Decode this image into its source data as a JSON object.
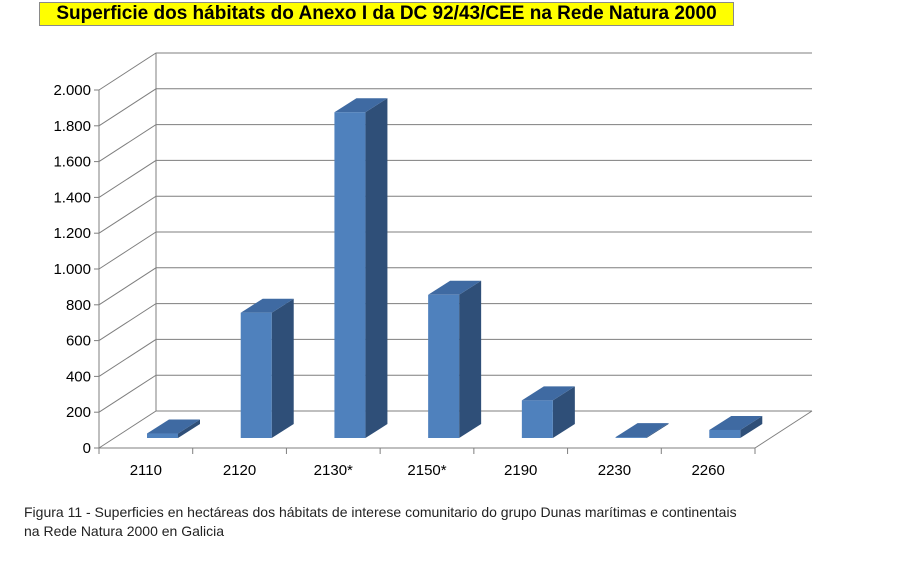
{
  "title": "Superficie dos hábitats do Anexo I da DC 92/43/CEE na Rede Natura 2000",
  "caption_line1": "Figura 11 - Superficies en hectáreas dos hábitats de interese comunitario do grupo Dunas marítimas e continentais",
  "caption_line2": "na Rede Natura 2000 en Galicia",
  "chart_data": {
    "type": "bar",
    "categories": [
      "2110",
      "2120",
      "2130*",
      "2150*",
      "2190",
      "2230",
      "2260"
    ],
    "values": [
      25,
      700,
      1820,
      800,
      210,
      5,
      45
    ],
    "ylim": [
      0,
      2000
    ],
    "yticks": [
      0,
      200,
      400,
      600,
      800,
      1000,
      1200,
      1400,
      1600,
      1800,
      2000
    ],
    "ytick_labels": [
      "0",
      "200",
      "400",
      "600",
      "800",
      "1.000",
      "1.200",
      "1.400",
      "1.600",
      "1.800",
      "2.000"
    ],
    "grid": true,
    "colors": {
      "front": "#4f81bd",
      "side": "#2f4f78",
      "top": "#3f6aa2",
      "grid": "#7f7f7f"
    }
  }
}
